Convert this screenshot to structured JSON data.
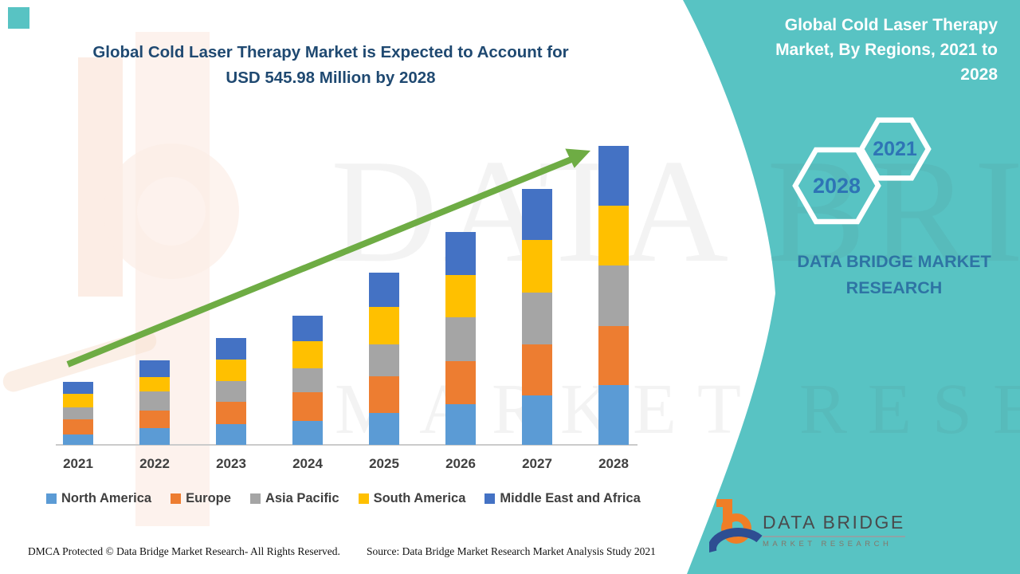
{
  "title": {
    "line1": "Global Cold Laser Therapy Market is Expected to Account for",
    "line2": "USD 545.98 Million by 2028"
  },
  "side_panel": {
    "heading_lines": [
      "Global Cold Laser Therapy",
      "Market, By Regions, 2021 to",
      "2028"
    ],
    "hexagon_back_label": "2028",
    "hexagon_front_label": "2021",
    "brand_line1": "DATA BRIDGE MARKET",
    "brand_line2": "RESEARCH",
    "bg_color": "#58C3C3",
    "heading_color": "#FFFFFF",
    "brand_text_color": "#2E74A4",
    "hexagon_label_color": "#2E74B5"
  },
  "watermark": {
    "line1": "DATA BRIDGE",
    "line2": "MARKET RESEARCH"
  },
  "chart_data": {
    "type": "bar",
    "stacked": true,
    "title": "Global Cold Laser Therapy Market is Expected to Account for USD 545.98 Million by 2028",
    "unit": "USD Million",
    "categories": [
      "2021",
      "2022",
      "2023",
      "2024",
      "2025",
      "2026",
      "2027",
      "2028"
    ],
    "series": [
      {
        "name": "North America",
        "color": "#5B9BD5",
        "values": [
          19.0,
          30.7,
          37.4,
          43.0,
          57.6,
          74.5,
          90.1,
          108.7
        ]
      },
      {
        "name": "Europe",
        "color": "#ED7D31",
        "values": [
          27.8,
          31.6,
          40.5,
          52.0,
          66.6,
          78.9,
          92.5,
          108.1
        ]
      },
      {
        "name": "Asia Pacific",
        "color": "#A5A5A5",
        "values": [
          21.9,
          35.1,
          38.0,
          43.0,
          57.6,
          80.4,
          95.0,
          111.0
        ]
      },
      {
        "name": "South America",
        "color": "#FFC000",
        "values": [
          24.8,
          26.9,
          39.9,
          49.7,
          68.1,
          77.0,
          96.4,
          109.6
        ]
      },
      {
        "name": "Middle East and Africa",
        "color": "#4472C4",
        "values": [
          21.9,
          31.1,
          40.0,
          46.2,
          62.4,
          77.9,
          93.5,
          108.6
        ]
      }
    ],
    "totals_estimated": [
      115.4,
      155.4,
      195.8,
      233.9,
      312.3,
      388.7,
      467.5,
      546.0
    ],
    "value_2028_from_title": "USD 545.98 Million",
    "stacking_order_bottom_to_top": [
      "North America",
      "Europe",
      "Asia Pacific",
      "South America",
      "Middle East and Africa"
    ],
    "legend_position": "bottom",
    "gridlines": false,
    "y_axis_labels_visible": false,
    "trend_arrow": true,
    "trend_arrow_color": "#6EAC44",
    "xlabel": "",
    "ylabel": ""
  },
  "footer": {
    "left": "DMCA Protected © Data Bridge Market Research- All Rights Reserved.",
    "right": "Source: Data Bridge Market Research Market Analysis Study 2021"
  },
  "logo": {
    "title": "DATA BRIDGE",
    "subtitle": "MARKET RESEARCH"
  }
}
